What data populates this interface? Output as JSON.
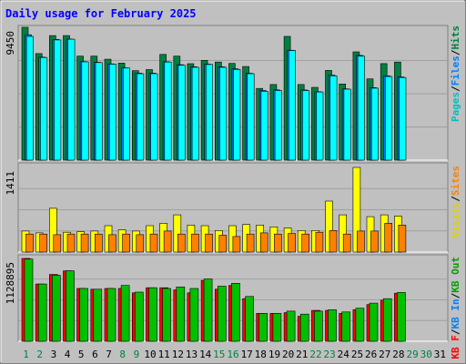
{
  "chart_data": [
    {
      "type": "bar",
      "title": "Daily usage for February 2025",
      "categories": [
        "1",
        "2",
        "3",
        "4",
        "5",
        "6",
        "7",
        "8",
        "9",
        "10",
        "11",
        "12",
        "13",
        "14",
        "15",
        "16",
        "17",
        "18",
        "19",
        "20",
        "21",
        "22",
        "23",
        "24",
        "25",
        "26",
        "27",
        "28",
        "29",
        "30",
        "31"
      ],
      "weekend_days": [
        "1",
        "2",
        "8",
        "9",
        "15",
        "16",
        "22",
        "23",
        "29",
        "30"
      ],
      "ymax_label": "9450",
      "legend": [
        "Pages",
        "Files",
        "Hits"
      ],
      "series": [
        {
          "name": "Hits",
          "color": "#008040",
          "values": [
            9450,
            7580,
            8860,
            8860,
            7400,
            7400,
            7180,
            6900,
            6360,
            6440,
            7520,
            7400,
            6860,
            7100,
            6980,
            6880,
            6660,
            5100,
            5380,
            8800,
            5380,
            5180,
            6380,
            5420,
            7700,
            5780,
            6870,
            6980,
            null,
            null,
            null
          ]
        },
        {
          "name": "Files",
          "color": "#0080ff",
          "values": [
            8920,
            7330,
            8580,
            8610,
            7010,
            6960,
            6850,
            6560,
            6190,
            6190,
            7000,
            6790,
            6640,
            6830,
            6640,
            6500,
            6180,
            4960,
            5000,
            7820,
            4990,
            4870,
            6050,
            5070,
            7450,
            5160,
            6000,
            5920,
            null,
            null,
            null
          ]
        },
        {
          "name": "Pages",
          "color": "#00ffff",
          "values": [
            8800,
            7300,
            8550,
            8600,
            6990,
            6940,
            6830,
            6550,
            6150,
            6150,
            6980,
            6750,
            6600,
            6800,
            6600,
            6450,
            6150,
            4900,
            4950,
            7800,
            4950,
            4850,
            6000,
            5050,
            7400,
            5120,
            5950,
            5880,
            null,
            null,
            null
          ]
        }
      ]
    },
    {
      "type": "bar",
      "ymax_label": "1411",
      "legend": [
        "Visits",
        "Sites"
      ],
      "series": [
        {
          "name": "Visits",
          "color": "#ffff00",
          "values": [
            350,
            320,
            730,
            330,
            340,
            350,
            440,
            370,
            350,
            440,
            480,
            620,
            450,
            440,
            360,
            440,
            460,
            450,
            420,
            400,
            360,
            360,
            850,
            620,
            1411,
            590,
            620,
            600,
            null,
            null,
            null
          ]
        },
        {
          "name": "Sites",
          "color": "#ff8000",
          "values": [
            300,
            300,
            290,
            300,
            300,
            300,
            290,
            300,
            290,
            300,
            350,
            300,
            300,
            300,
            280,
            260,
            300,
            320,
            300,
            310,
            300,
            330,
            360,
            300,
            350,
            350,
            480,
            450,
            null,
            null,
            null
          ]
        }
      ]
    },
    {
      "type": "bar",
      "ymax_label": "1128895",
      "legend": [
        "KB F",
        "KB In",
        "KB Out"
      ],
      "series": [
        {
          "name": "KB F",
          "color": "#ff0000",
          "values": [
            1128895,
            780000,
            910000,
            960000,
            720000,
            710000,
            720000,
            720000,
            660000,
            730000,
            730000,
            700000,
            660000,
            830000,
            710000,
            760000,
            580000,
            380000,
            380000,
            390000,
            340000,
            420000,
            420000,
            380000,
            430000,
            500000,
            560000,
            655000,
            null,
            null,
            null
          ]
        },
        {
          "name": "KB Out",
          "color": "#00c000",
          "values": [
            1120000,
            780000,
            900000,
            960000,
            720000,
            710000,
            720000,
            760000,
            670000,
            730000,
            720000,
            740000,
            720000,
            850000,
            750000,
            790000,
            610000,
            380000,
            380000,
            410000,
            370000,
            410000,
            430000,
            400000,
            450000,
            520000,
            580000,
            665000,
            null,
            null,
            null
          ]
        }
      ]
    }
  ]
}
